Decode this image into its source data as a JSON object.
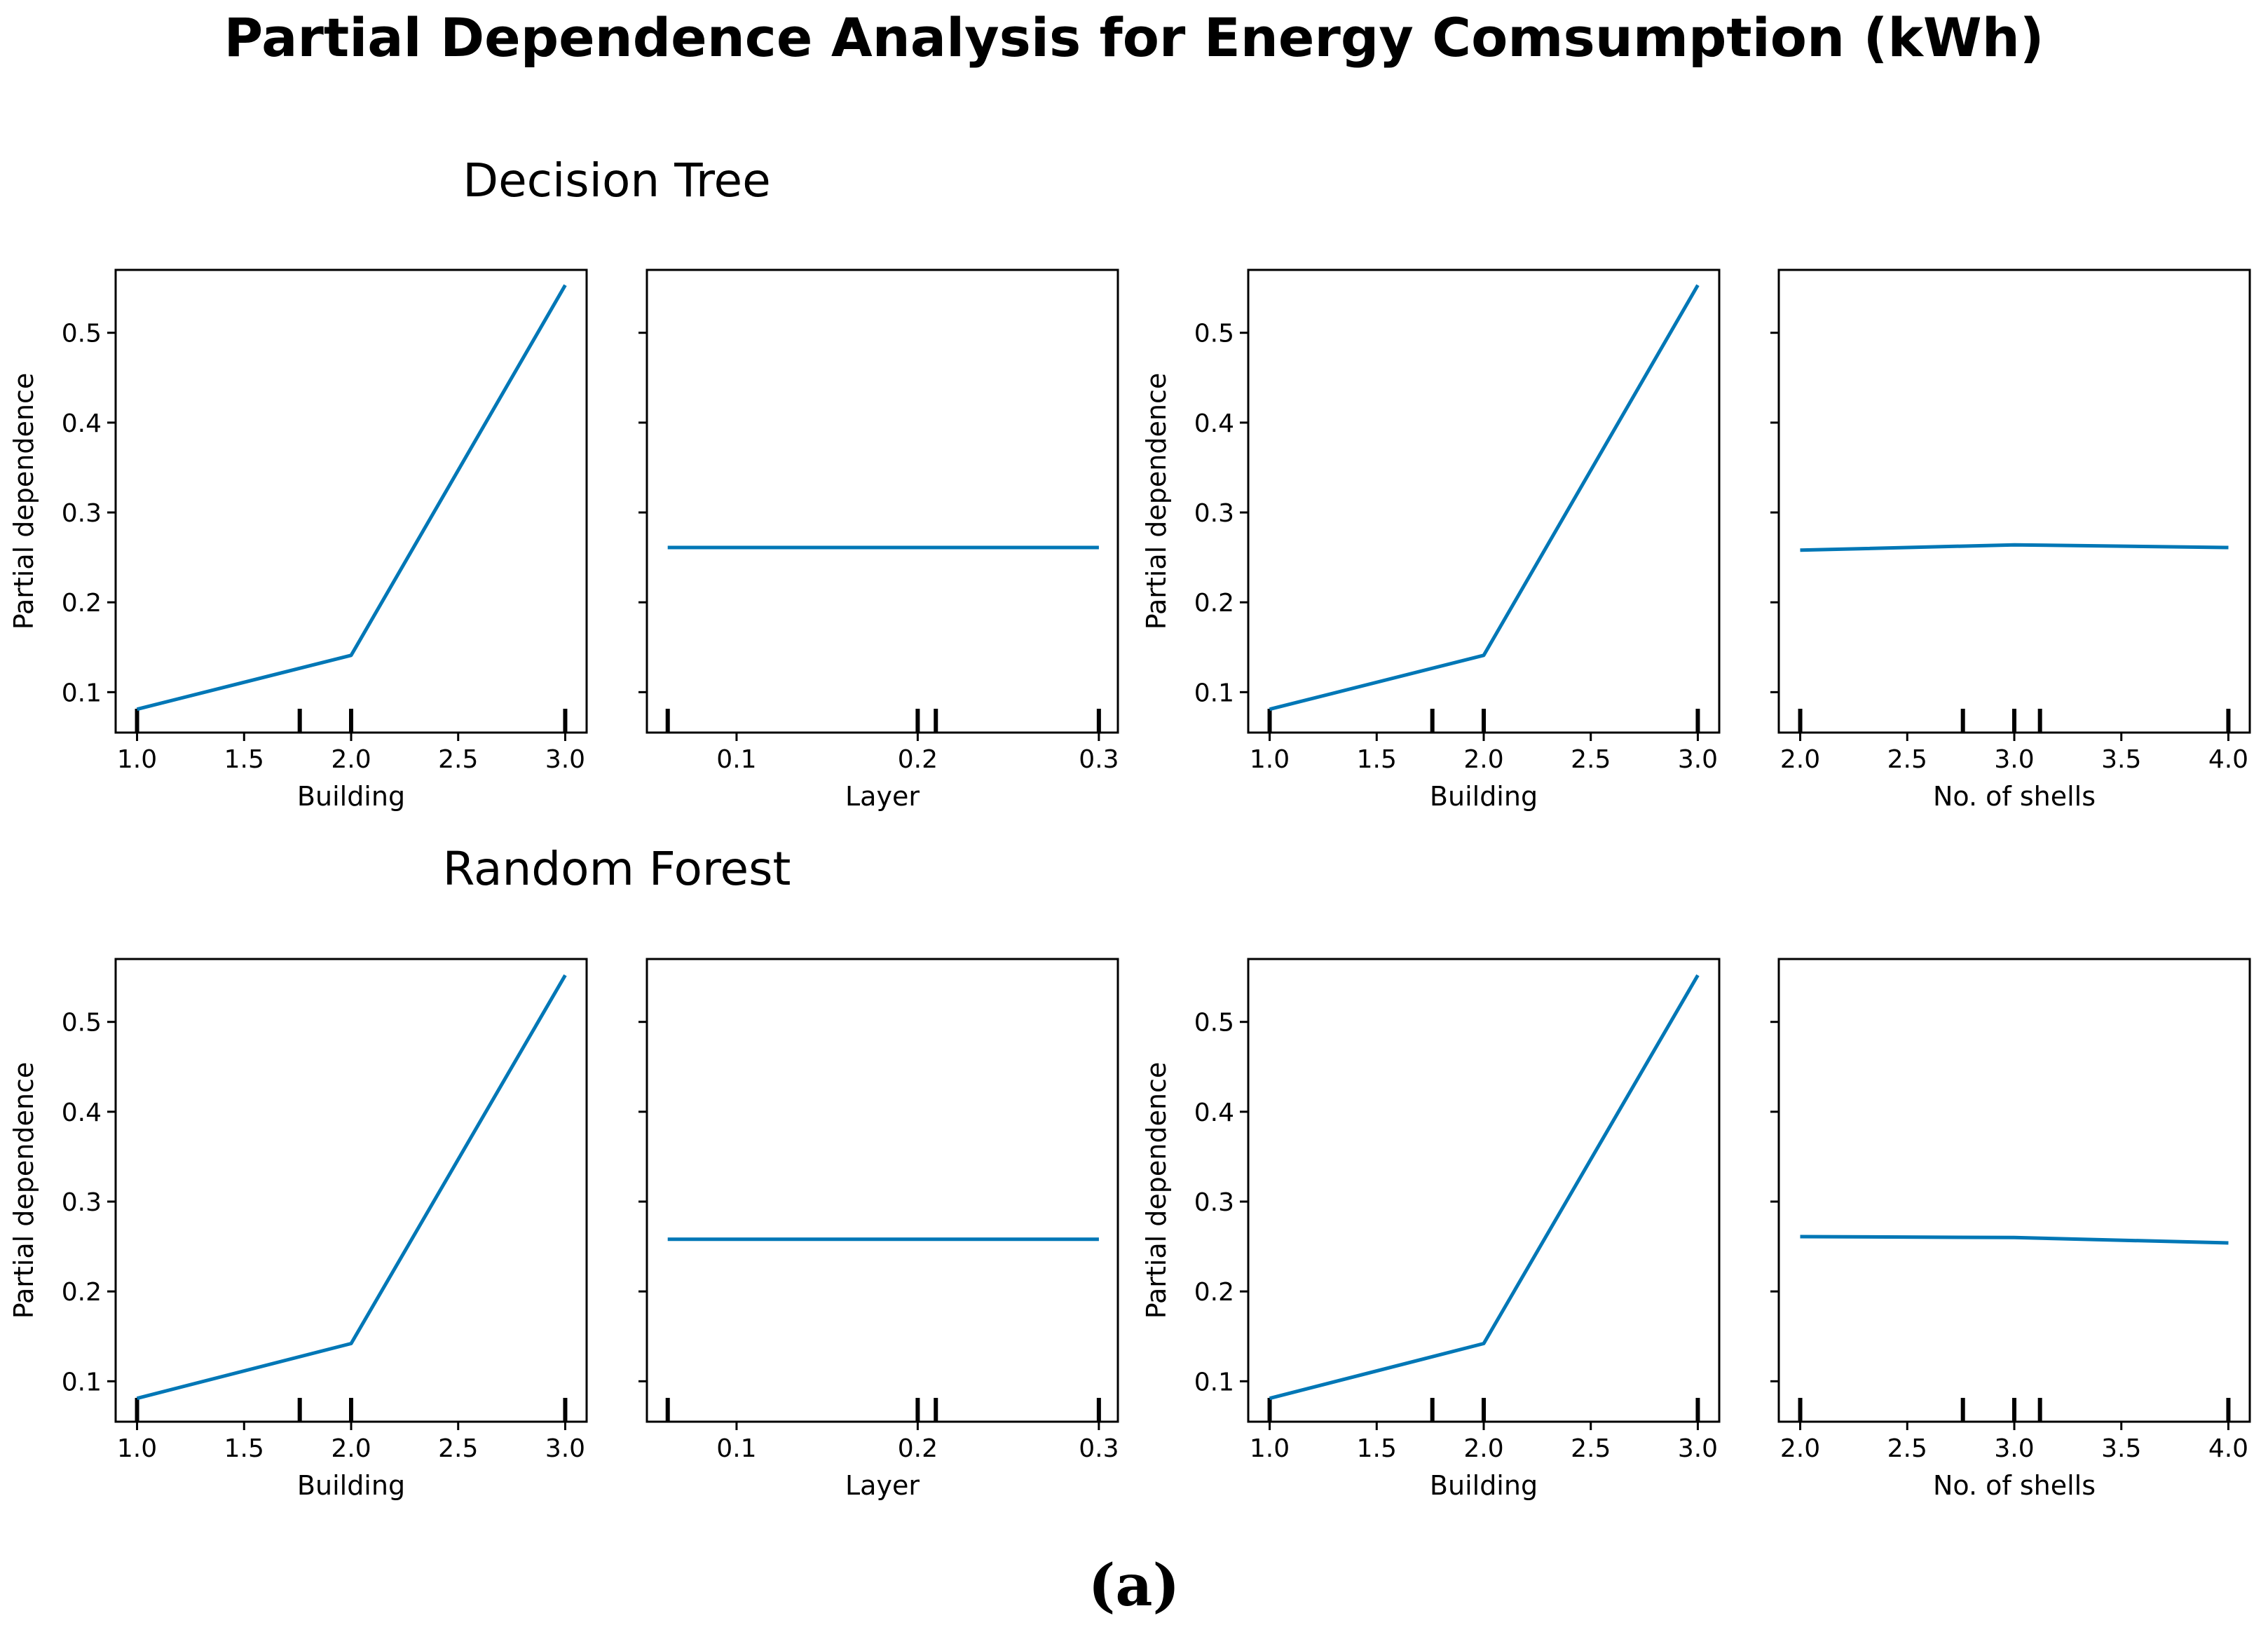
{
  "title": "Partial Dependence Analysis for Energy Comsumption (kWh)",
  "caption": "(a)",
  "sections": [
    {
      "label": "Decision Tree"
    },
    {
      "label": "Random Forest"
    }
  ],
  "colors": {
    "line": "#0077b6",
    "axis": "#000000"
  },
  "chart_data": [
    {
      "type": "line",
      "model": "Decision Tree",
      "xlabel": "Building",
      "ylabel": "Partial dependence",
      "xlim": [
        0.9,
        3.1
      ],
      "ylim": [
        0.055,
        0.57
      ],
      "xticks": [
        1.0,
        1.5,
        2.0,
        2.5,
        3.0
      ],
      "xtick_labels": [
        "1.0",
        "1.5",
        "2.0",
        "2.5",
        "3.0"
      ],
      "yticks": [
        0.1,
        0.2,
        0.3,
        0.4,
        0.5
      ],
      "ytick_labels": [
        "0.1",
        "0.2",
        "0.3",
        "0.4",
        "0.5"
      ],
      "x": [
        1.0,
        2.0,
        3.0
      ],
      "y": [
        0.081,
        0.141,
        0.553
      ],
      "deciles": [
        1.0,
        1.76,
        2.0,
        3.0
      ]
    },
    {
      "type": "line",
      "model": "Decision Tree",
      "xlabel": "Layer",
      "ylabel": "",
      "xlim": [
        0.0505,
        0.3105
      ],
      "ylim": [
        0.055,
        0.57
      ],
      "xticks": [
        0.1,
        0.2,
        0.3
      ],
      "xtick_labels": [
        "0.1",
        "0.2",
        "0.3"
      ],
      "yticks": [
        0.1,
        0.2,
        0.3,
        0.4,
        0.5
      ],
      "ytick_labels": [],
      "x": [
        0.062,
        0.3
      ],
      "y": [
        0.261,
        0.261
      ],
      "deciles": [
        0.062,
        0.2,
        0.21,
        0.3
      ]
    },
    {
      "type": "line",
      "model": "Decision Tree",
      "xlabel": "Building",
      "ylabel": "Partial dependence",
      "xlim": [
        0.9,
        3.1
      ],
      "ylim": [
        0.055,
        0.57
      ],
      "xticks": [
        1.0,
        1.5,
        2.0,
        2.5,
        3.0
      ],
      "xtick_labels": [
        "1.0",
        "1.5",
        "2.0",
        "2.5",
        "3.0"
      ],
      "yticks": [
        0.1,
        0.2,
        0.3,
        0.4,
        0.5
      ],
      "ytick_labels": [
        "0.1",
        "0.2",
        "0.3",
        "0.4",
        "0.5"
      ],
      "x": [
        1.0,
        2.0,
        3.0
      ],
      "y": [
        0.081,
        0.141,
        0.553
      ],
      "deciles": [
        1.0,
        1.76,
        2.0,
        3.0
      ]
    },
    {
      "type": "line",
      "model": "Decision Tree",
      "xlabel": "No. of shells",
      "ylabel": "",
      "xlim": [
        1.9,
        4.1
      ],
      "ylim": [
        0.055,
        0.57
      ],
      "xticks": [
        2.0,
        2.5,
        3.0,
        3.5,
        4.0
      ],
      "xtick_labels": [
        "2.0",
        "2.5",
        "3.0",
        "3.5",
        "4.0"
      ],
      "yticks": [
        0.1,
        0.2,
        0.3,
        0.4,
        0.5
      ],
      "ytick_labels": [],
      "x": [
        2.0,
        3.0,
        4.0
      ],
      "y": [
        0.258,
        0.264,
        0.261
      ],
      "deciles": [
        2.0,
        2.76,
        3.0,
        3.12,
        4.0
      ]
    },
    {
      "type": "line",
      "model": "Random Forest",
      "xlabel": "Building",
      "ylabel": "Partial dependence",
      "xlim": [
        0.9,
        3.1
      ],
      "ylim": [
        0.055,
        0.57
      ],
      "xticks": [
        1.0,
        1.5,
        2.0,
        2.5,
        3.0
      ],
      "xtick_labels": [
        "1.0",
        "1.5",
        "2.0",
        "2.5",
        "3.0"
      ],
      "yticks": [
        0.1,
        0.2,
        0.3,
        0.4,
        0.5
      ],
      "ytick_labels": [
        "0.1",
        "0.2",
        "0.3",
        "0.4",
        "0.5"
      ],
      "x": [
        1.0,
        2.0,
        3.0
      ],
      "y": [
        0.081,
        0.142,
        0.552
      ],
      "deciles": [
        1.0,
        1.76,
        2.0,
        3.0
      ]
    },
    {
      "type": "line",
      "model": "Random Forest",
      "xlabel": "Layer",
      "ylabel": "",
      "xlim": [
        0.0505,
        0.3105
      ],
      "ylim": [
        0.055,
        0.57
      ],
      "xticks": [
        0.1,
        0.2,
        0.3
      ],
      "xtick_labels": [
        "0.1",
        "0.2",
        "0.3"
      ],
      "yticks": [
        0.1,
        0.2,
        0.3,
        0.4,
        0.5
      ],
      "ytick_labels": [],
      "x": [
        0.062,
        0.3
      ],
      "y": [
        0.258,
        0.258
      ],
      "deciles": [
        0.062,
        0.2,
        0.21,
        0.3
      ]
    },
    {
      "type": "line",
      "model": "Random Forest",
      "xlabel": "Building",
      "ylabel": "Partial dependence",
      "xlim": [
        0.9,
        3.1
      ],
      "ylim": [
        0.055,
        0.57
      ],
      "xticks": [
        1.0,
        1.5,
        2.0,
        2.5,
        3.0
      ],
      "xtick_labels": [
        "1.0",
        "1.5",
        "2.0",
        "2.5",
        "3.0"
      ],
      "yticks": [
        0.1,
        0.2,
        0.3,
        0.4,
        0.5
      ],
      "ytick_labels": [
        "0.1",
        "0.2",
        "0.3",
        "0.4",
        "0.5"
      ],
      "x": [
        1.0,
        2.0,
        3.0
      ],
      "y": [
        0.081,
        0.142,
        0.552
      ],
      "deciles": [
        1.0,
        1.76,
        2.0,
        3.0
      ]
    },
    {
      "type": "line",
      "model": "Random Forest",
      "xlabel": "No. of shells",
      "ylabel": "",
      "xlim": [
        1.9,
        4.1
      ],
      "ylim": [
        0.055,
        0.57
      ],
      "xticks": [
        2.0,
        2.5,
        3.0,
        3.5,
        4.0
      ],
      "xtick_labels": [
        "2.0",
        "2.5",
        "3.0",
        "3.5",
        "4.0"
      ],
      "yticks": [
        0.1,
        0.2,
        0.3,
        0.4,
        0.5
      ],
      "ytick_labels": [],
      "x": [
        2.0,
        3.0,
        4.0
      ],
      "y": [
        0.261,
        0.26,
        0.254
      ],
      "deciles": [
        2.0,
        2.76,
        3.0,
        3.12,
        4.0
      ]
    }
  ]
}
